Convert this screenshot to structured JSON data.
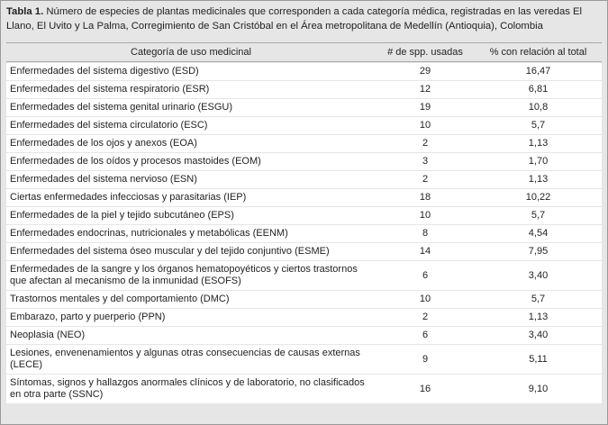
{
  "caption": {
    "label": "Tabla 1.",
    "text": "Número de especies de plantas medicinales que corresponden a cada categoría médica, registradas en las veredas El Llano, El Uvito y La Palma, Corregimiento de San Cristóbal en el Área metropolitana de Medellín (Antioquia), Colombia"
  },
  "table": {
    "header": [
      "Categoría de uso medicinal",
      "# de spp. usadas",
      "% con relación al total"
    ],
    "rows": [
      [
        "Enfermedades del sistema digestivo (ESD)",
        "29",
        "16,47"
      ],
      [
        "Enfermedades del sistema respiratorio (ESR)",
        "12",
        "6,81"
      ],
      [
        "Enfermedades del sistema genital urinario (ESGU)",
        "19",
        "10,8"
      ],
      [
        "Enfermedades del sistema circulatorio (ESC)",
        "10",
        "5,7"
      ],
      [
        "Enfermedades de los ojos y anexos (EOA)",
        "2",
        "1,13"
      ],
      [
        "Enfermedades de los oídos y procesos mastoides (EOM)",
        "3",
        "1,70"
      ],
      [
        "Enfermedades del sistema nervioso (ESN)",
        "2",
        "1,13"
      ],
      [
        "Ciertas enfermedades infecciosas y parasitarias (IEP)",
        "18",
        "10,22"
      ],
      [
        "Enfermedades de la piel y tejido subcutáneo (EPS)",
        "10",
        "5,7"
      ],
      [
        "Enfermedades endocrinas, nutricionales y metabólicas (EENM)",
        "8",
        "4,54"
      ],
      [
        "Enfermedades del sistema óseo muscular y del tejido conjuntivo (ESME)",
        "14",
        "7,95"
      ],
      [
        "Enfermedades de la sangre y los órganos hematopoyéticos y ciertos trastornos que afectan al mecanismo de la inmunidad (ESOFS)",
        "6",
        "3,40"
      ],
      [
        "Trastornos mentales y del comportamiento (DMC)",
        "10",
        "5,7"
      ],
      [
        "Embarazo, parto y puerperio (PPN)",
        "2",
        "1,13"
      ],
      [
        "Neoplasia (NEO)",
        "6",
        "3,40"
      ],
      [
        "Lesiones, envenenamientos y algunas otras consecuencias de causas externas (LECE)",
        "9",
        "5,11"
      ],
      [
        "Síntomas, signos y hallazgos anormales clínicos y de laboratorio, no clasificados en otra parte (SSNC)",
        "16",
        "9,10"
      ]
    ]
  }
}
